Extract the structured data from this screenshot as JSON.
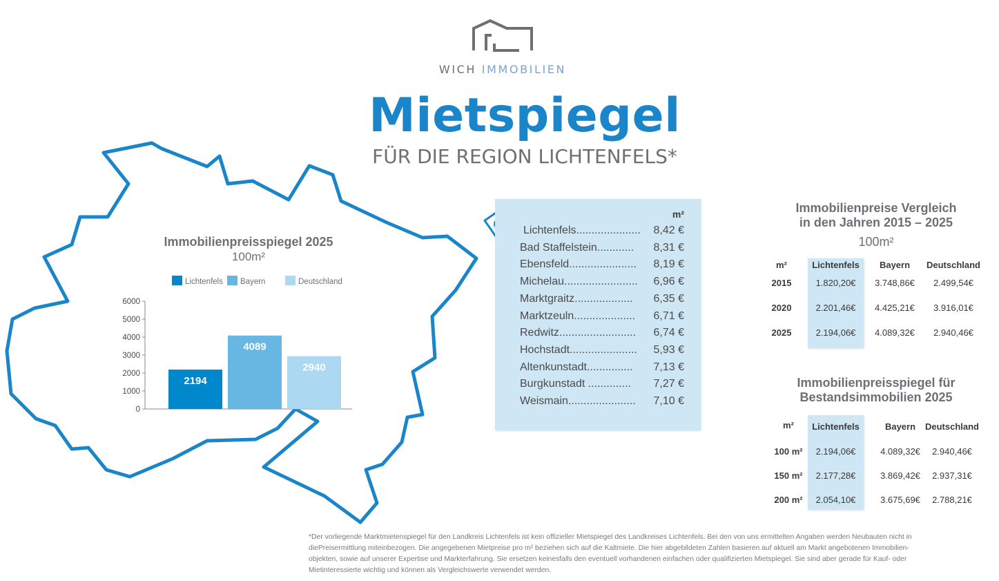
{
  "brand": {
    "name_part1": "WICH ",
    "name_part2": "IMMOBILIEN"
  },
  "title": "Mietspiegel",
  "subtitle": "FÜR DIE REGION LICHTENFELS*",
  "colors": {
    "primary": "#1a85c8",
    "lichtenfels": "#0087cc",
    "bayern": "#68b7e3",
    "deutschland": "#acd8f1",
    "panel": "#cfe7f5"
  },
  "icons": {
    "logo": "house-outline-icon",
    "tag": "euro-price-tag-icon"
  },
  "chart_data": {
    "type": "bar",
    "title": "Immobilienpreisspiegel 2025",
    "unit_label": "100m²",
    "categories": [
      "Lichtenfels",
      "Bayern",
      "Deutschland"
    ],
    "values": [
      2194,
      4089,
      2940
    ],
    "value_labels": [
      "2194",
      "4089",
      "2940"
    ],
    "legend": [
      "Lichtenfels",
      "Bayern",
      "Deutschland"
    ],
    "legend_position": "top",
    "ylim": [
      0,
      6000
    ],
    "yticks": [
      0,
      1000,
      2000,
      3000,
      4000,
      5000,
      6000
    ],
    "ytick_labels": [
      "0",
      "1000",
      "2000",
      "3000",
      "4000",
      "5000",
      "6000"
    ],
    "grid": false
  },
  "rent_table": {
    "unit": "m²",
    "rows": [
      {
        "name": "Lichtenfels.....................",
        "price": "8,42 €"
      },
      {
        "name": "Bad Staffelstein............",
        "price": "8,31 €"
      },
      {
        "name": "Ebensfeld......................",
        "price": "8,19 €"
      },
      {
        "name": "Michelau........................",
        "price": "6,96 €"
      },
      {
        "name": "Marktgraitz...................",
        "price": "6,35 €"
      },
      {
        "name": "Marktzeuln....................",
        "price": "6,71 €"
      },
      {
        "name": "Redwitz.........................",
        "price": "6,74 €"
      },
      {
        "name": "Hochstadt......................",
        "price": "5,93 €"
      },
      {
        "name": "Altenkunstadt...............",
        "price": "7,13 €"
      },
      {
        "name": "Burgkunstadt ..............",
        "price": "7,27 €"
      },
      {
        "name": "Weismain......................",
        "price": "7,10 €"
      }
    ]
  },
  "table_years": {
    "title_line1": "Immobilienpreise Vergleich",
    "title_line2": "in den Jahren 2015 – 2025",
    "unit": "100m²",
    "headers": [
      "m²",
      "Lichtenfels",
      "Bayern",
      "Deutschland"
    ],
    "rows": [
      [
        "2015",
        "1.820,20€",
        "3.748,86€",
        "2.499,54€"
      ],
      [
        "2020",
        "2.201,46€",
        "4.425,21€",
        "3.916,01€"
      ],
      [
        "2025",
        "2.194,06€",
        "4.089,32€",
        "2.940,46€"
      ]
    ]
  },
  "table_existing": {
    "title_line1": "Immobilienpreisspiegel für",
    "title_line2": "Bestandsimmobilien 2025",
    "headers": [
      "m²",
      "Lichtenfels",
      "Bayern",
      "Deutschland"
    ],
    "rows": [
      [
        "100 m²",
        "2.194,06€",
        "4.089,32€",
        "2.940,46€"
      ],
      [
        "150 m²",
        "2.177,28€",
        "3.869,42€",
        "2.937,31€"
      ],
      [
        "200 m²",
        "2.054,10€",
        "3.675,69€",
        "2.788,21€"
      ]
    ]
  },
  "footnote": [
    "*Der vorliegende Marktmietenspiegel für den Landkreis Lichtenfels ist kein offizieller Mietspiegel des Landkreises Lichtenfels. Bei den von uns ermittelten Angaben werden Neubauten nicht in",
    "diePreisermittlung miteinbezogen. Die angegebenen Mietpreise pro m² beziehen sich auf die Kaltmiete. Die hier abgebildeten Zahlen basieren auf aktuell am Markt angebotenen Immobilien-",
    "objekten, sowie auf unserer Expertise und Markterfahrung. Sie ersetzen keinesfalls den eventuell vorhandenen einfachen oder qualifizierten Mietspiegel. Sie sind aber gerade für Kauf- oder",
    "Mietinteressierte wichtig und können als Vergleichswerte verwendet werden."
  ]
}
